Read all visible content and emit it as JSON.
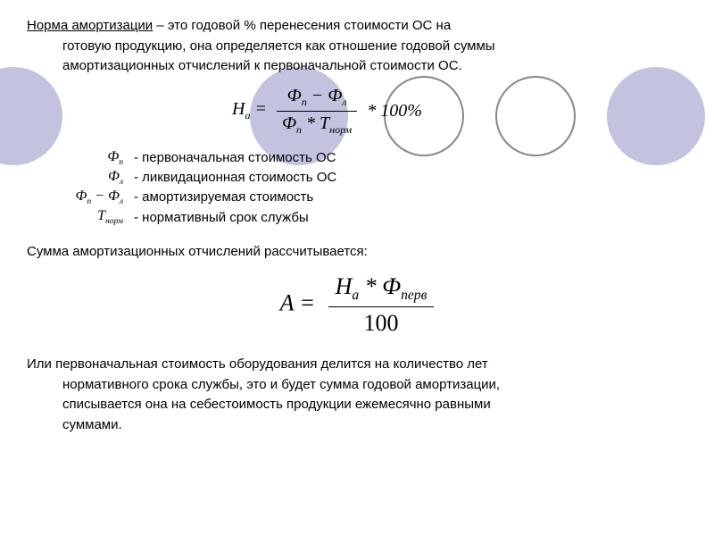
{
  "intro": {
    "term": "Норма амортизации",
    "line1_rest": " – это годовой % перенесения стоимости ОС на",
    "line2": "готовую продукцию, она определяется как отношение годовой суммы",
    "line3": "амортизационных отчислений к первоначальной стоимости ОС."
  },
  "formula1": {
    "lhs": "Н",
    "lhs_sub": "а",
    "eq": " = ",
    "num_a": "Ф",
    "num_a_sub": "п",
    "minus": " − ",
    "num_b": "Ф",
    "num_b_sub": "л",
    "den_a": "Ф",
    "den_a_sub": "п",
    "star": " * ",
    "den_b": "Т",
    "den_b_sub": "норм",
    "tail": " * 100%"
  },
  "defs": [
    {
      "sym_html": "Ф<span class='sub'>п</span>",
      "text": "- первоначальная стоимость ОС"
    },
    {
      "sym_html": "Ф<span class='sub'>л</span>",
      "text": "- ликвидационная стоимость ОС"
    },
    {
      "sym_html": "Ф<span class='sub'>п</span> − Ф<span class='sub'>л</span>",
      "text": "- амортизируемая стоимость"
    },
    {
      "sym_html": "Т<span class='sub'>норм</span>",
      "text": "- нормативный срок службы"
    }
  ],
  "mid": "Сумма амортизационных отчислений рассчитывается:",
  "formula2": {
    "lhs": "A = ",
    "num_a": "Н",
    "num_a_sub": "а",
    "star": " * ",
    "num_b": "Ф",
    "num_b_sub": "перв",
    "den": "100"
  },
  "outro": {
    "line1": "Или первоначальная стоимость оборудования делится на количество лет",
    "line2": "нормативного срока службы, это и будет сумма годовой амортизации,",
    "line3": "списывается она на себестоимость продукции ежемесячно равными",
    "line4": "суммами."
  },
  "style": {
    "circle_fill": "#c3c3e0",
    "circle_stroke": "#888888",
    "text_color": "#000000",
    "bg": "#ffffff",
    "body_fontsize": 15,
    "formula_font": "Times New Roman"
  }
}
